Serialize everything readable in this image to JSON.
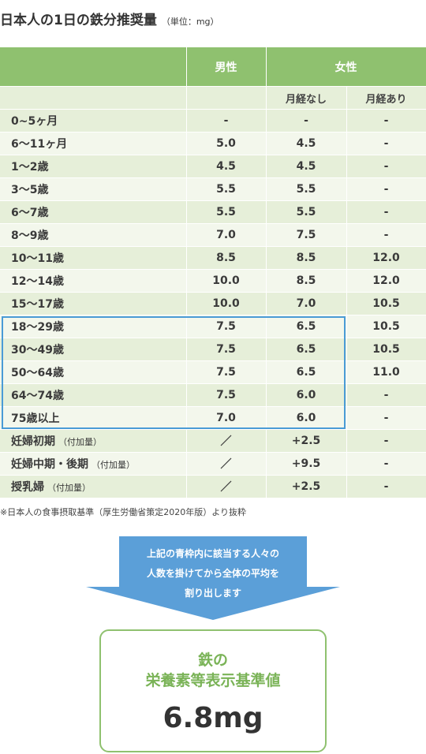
{
  "title": "日本人の1日の鉄分推奨量",
  "unit": "（単位：mg）",
  "headers": {
    "male": "男性",
    "female": "女性",
    "no_menses": "月経なし",
    "with_menses": "月経あり"
  },
  "rows": [
    {
      "age": "0~5ヶ月",
      "note": "",
      "male": "-",
      "no_menses": "-",
      "with_menses": "-"
    },
    {
      "age": "6～11ヶ月",
      "note": "",
      "male": "5.0",
      "no_menses": "4.5",
      "with_menses": "-"
    },
    {
      "age": "1～2歳",
      "note": "",
      "male": "4.5",
      "no_menses": "4.5",
      "with_menses": "-"
    },
    {
      "age": "3～5歳",
      "note": "",
      "male": "5.5",
      "no_menses": "5.5",
      "with_menses": "-"
    },
    {
      "age": "6～7歳",
      "note": "",
      "male": "5.5",
      "no_menses": "5.5",
      "with_menses": "-"
    },
    {
      "age": "8～9歳",
      "note": "",
      "male": "7.0",
      "no_menses": "7.5",
      "with_menses": "-"
    },
    {
      "age": "10～11歳",
      "note": "",
      "male": "8.5",
      "no_menses": "8.5",
      "with_menses": "12.0"
    },
    {
      "age": "12～14歳",
      "note": "",
      "male": "10.0",
      "no_menses": "8.5",
      "with_menses": "12.0"
    },
    {
      "age": "15～17歳",
      "note": "",
      "male": "10.0",
      "no_menses": "7.0",
      "with_menses": "10.5"
    },
    {
      "age": "18～29歳",
      "note": "",
      "male": "7.5",
      "no_menses": "6.5",
      "with_menses": "10.5"
    },
    {
      "age": "30～49歳",
      "note": "",
      "male": "7.5",
      "no_menses": "6.5",
      "with_menses": "10.5"
    },
    {
      "age": "50～64歳",
      "note": "",
      "male": "7.5",
      "no_menses": "6.5",
      "with_menses": "11.0"
    },
    {
      "age": "64～74歳",
      "note": "",
      "male": "7.5",
      "no_menses": "6.0",
      "with_menses": "-"
    },
    {
      "age": "75歳以上",
      "note": "",
      "male": "7.0",
      "no_menses": "6.0",
      "with_menses": "-"
    },
    {
      "age": "妊婦初期",
      "note": "（付加量）",
      "male": "／",
      "no_menses": "+2.5",
      "with_menses": "-"
    },
    {
      "age": "妊婦中期・後期",
      "note": "（付加量）",
      "male": "／",
      "no_menses": "+9.5",
      "with_menses": "-"
    },
    {
      "age": "授乳婦",
      "note": "（付加量）",
      "male": "／",
      "no_menses": "+2.5",
      "with_menses": "-"
    }
  ],
  "footnote": "※日本人の食事摂取基準（厚生労働省策定2020年版）より抜粋",
  "arrow_text": [
    "上記の青枠内に該当する人々の",
    "人数を掛けてから全体の平均を",
    "割り出します"
  ],
  "result": {
    "line1": "鉄の",
    "line2": "栄養素等表示基準値",
    "value": "6.8mg"
  },
  "colors": {
    "header_green": "#8fc16f",
    "row_light": "#f3f7ec",
    "row_dark": "#e6efd9",
    "highlight_blue": "#4a9bd6",
    "arrow_blue": "#5b9fd8"
  }
}
